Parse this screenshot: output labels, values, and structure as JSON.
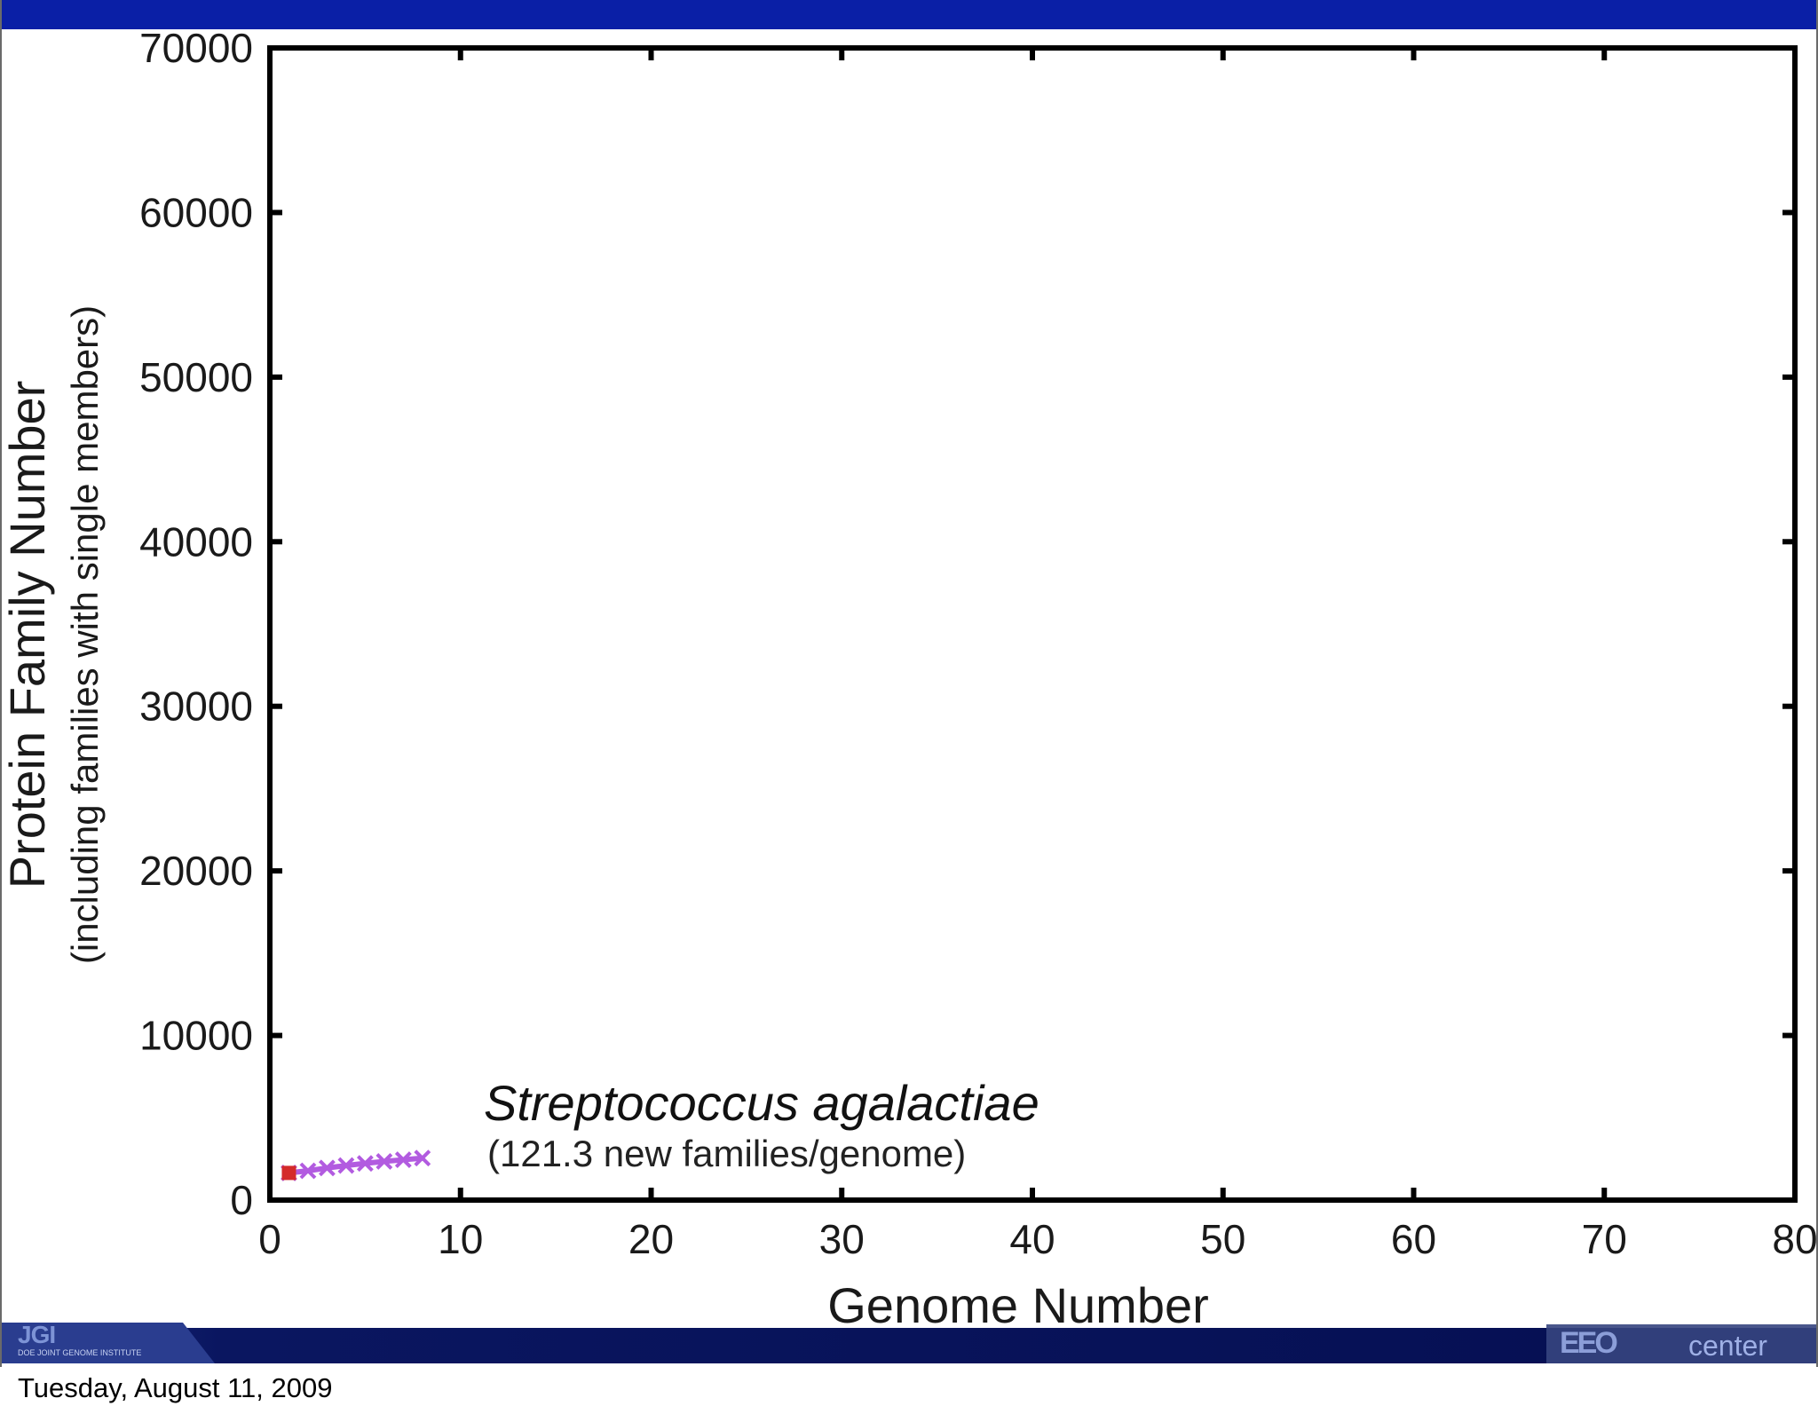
{
  "chart_data": {
    "type": "line",
    "xlabel": "Genome Number",
    "ylabel": "Protein Family Number",
    "ylabel_sub": "(including families with single members)",
    "xlim": [
      0,
      80
    ],
    "ylim": [
      0,
      70000
    ],
    "x_ticks": [
      "0",
      "10",
      "20",
      "30",
      "40",
      "50",
      "60",
      "70",
      "80"
    ],
    "y_ticks": [
      "0",
      "10000",
      "20000",
      "30000",
      "40000",
      "50000",
      "60000",
      "70000"
    ],
    "grid": false,
    "series": [
      {
        "color": "#b25be0",
        "marker": "x",
        "x": [
          1,
          2,
          3,
          4,
          5,
          6,
          7,
          8
        ],
        "y": [
          1650,
          1780,
          1950,
          2100,
          2230,
          2350,
          2450,
          2550
        ]
      },
      {
        "color": "#d42a2a",
        "marker": "square",
        "x": [
          1
        ],
        "y": [
          1650
        ]
      }
    ],
    "annotation": {
      "title": "Streptococcus agalactiae",
      "subtitle": "(121.3 new families/genome)"
    }
  },
  "footer": {
    "date": "Tuesday, August 11, 2009",
    "left_logo_mark": "JGI",
    "left_logo_text": "DOE JOINT GENOME INSTITUTE",
    "right_logo_mark": "EEO",
    "right_logo_text": "center"
  },
  "colors": {
    "top_bar": "#0a1fa6",
    "footer_bar": "#050f52"
  }
}
